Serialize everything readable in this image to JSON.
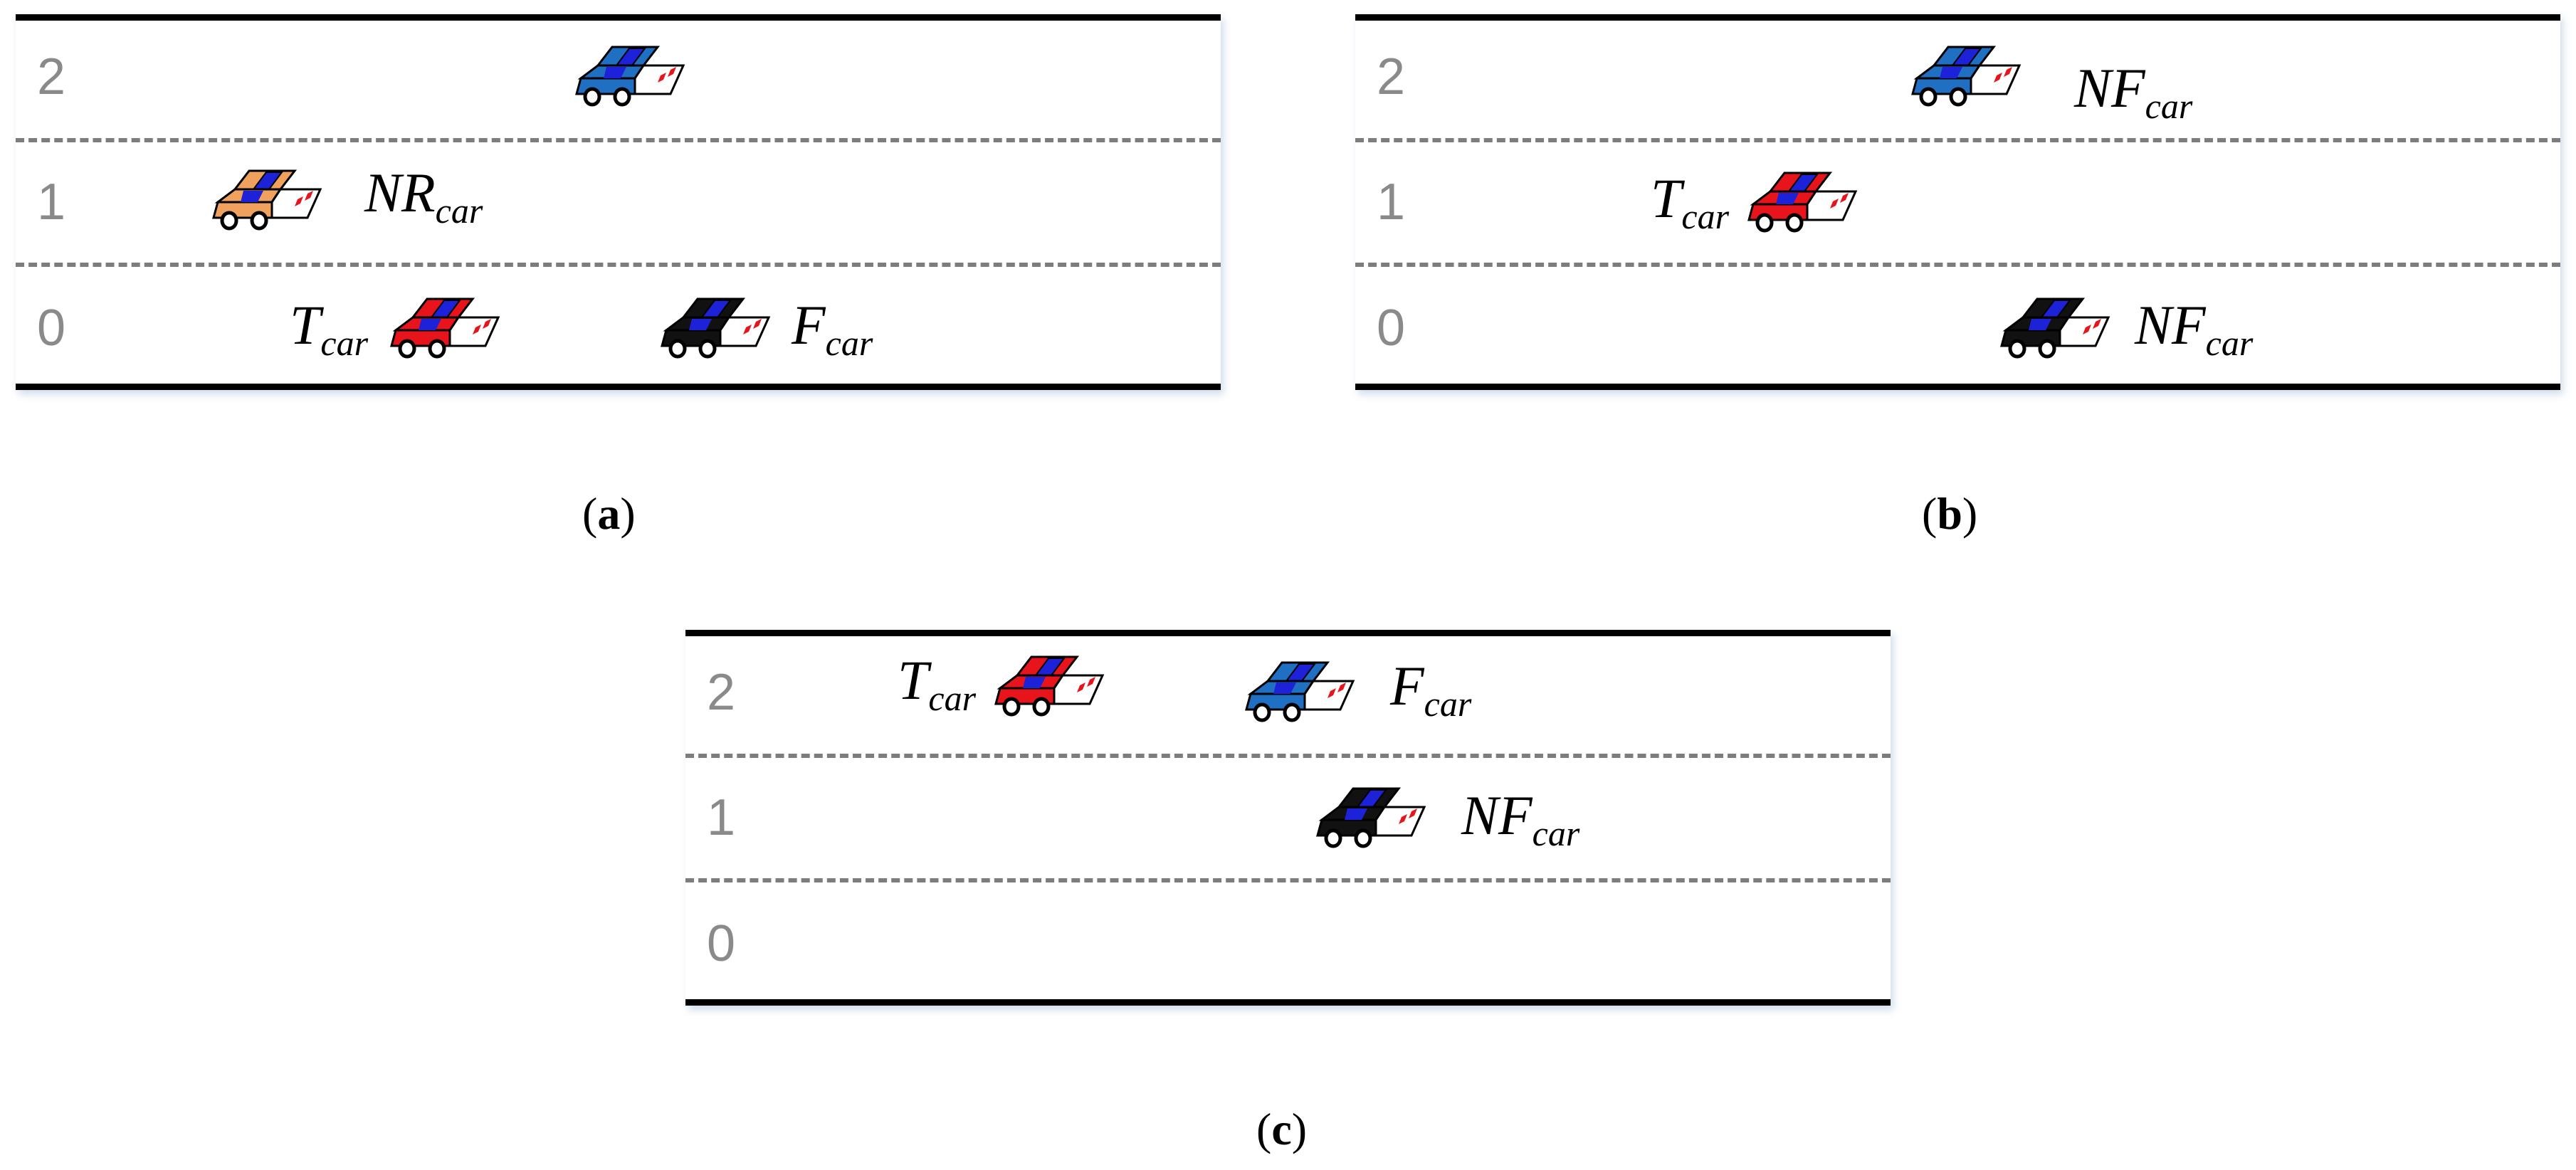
{
  "lanes": [
    "0",
    "1",
    "2"
  ],
  "colors": {
    "blue": "#1f6fc2",
    "orange": "#f0a15e",
    "red": "#e8141c",
    "black": "#111111",
    "divider": "#7d7d7d",
    "lane_number": "#8a8a8a"
  },
  "panels": [
    {
      "caption": "a",
      "cars": [
        {
          "lane": "2",
          "color": "blue",
          "label": ""
        },
        {
          "lane": "1",
          "color": "orange",
          "label": "NR",
          "sub": "car"
        },
        {
          "lane": "0",
          "color": "red",
          "label": "T",
          "sub": "car"
        },
        {
          "lane": "0",
          "color": "black",
          "label": "F",
          "sub": "car"
        }
      ]
    },
    {
      "caption": "b",
      "cars": [
        {
          "lane": "2",
          "color": "blue",
          "label": "NF",
          "sub": "car"
        },
        {
          "lane": "1",
          "color": "red",
          "label": "T",
          "sub": "car"
        },
        {
          "lane": "0",
          "color": "black",
          "label": "NF",
          "sub": "car"
        }
      ]
    },
    {
      "caption": "c",
      "cars": [
        {
          "lane": "2",
          "color": "red",
          "label": "T",
          "sub": "car"
        },
        {
          "lane": "2",
          "color": "blue",
          "label": "F",
          "sub": "car"
        },
        {
          "lane": "1",
          "color": "black",
          "label": "NF",
          "sub": "car"
        }
      ]
    }
  ]
}
